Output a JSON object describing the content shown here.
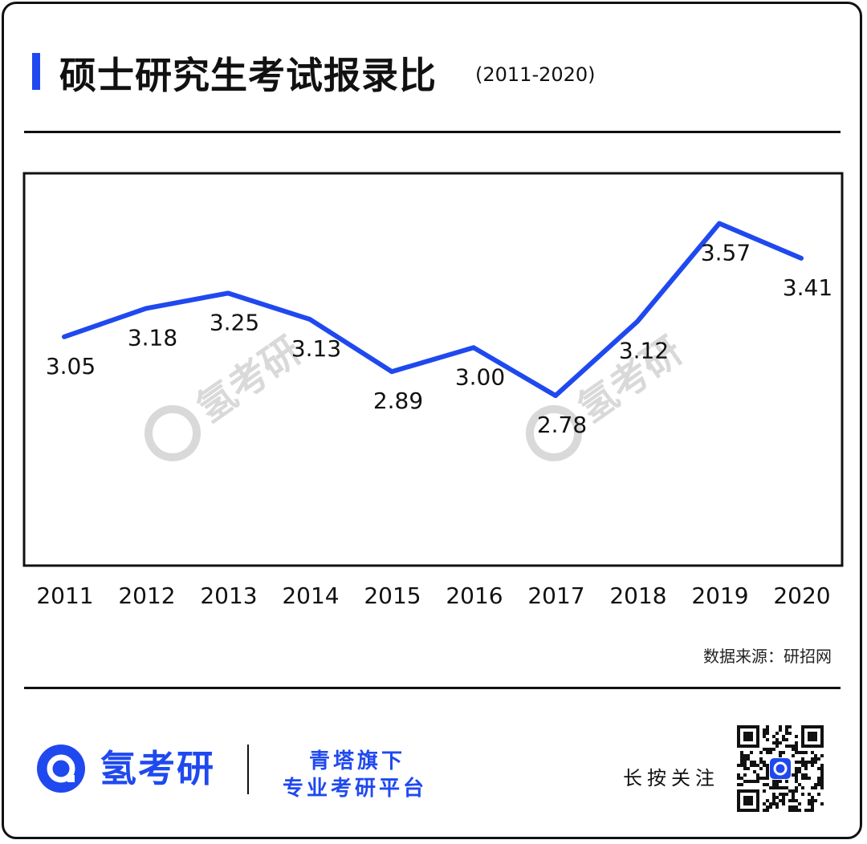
{
  "header": {
    "title": "硕士研究生考试报录比",
    "subtitle": "(2011-2020)"
  },
  "source": "数据来源：研招网",
  "footer": {
    "brand": "氢考研",
    "tagline_1": "青塔旗下",
    "tagline_2": "专业考研平台",
    "follow": "长按关注"
  },
  "watermark": "氢考研",
  "colors": {
    "accent": "#1f49ef",
    "line": "#1f49ef",
    "text": "#111111",
    "watermark": "#d9d9d9"
  },
  "chart_data": {
    "type": "line",
    "title": "硕士研究生考试报录比",
    "subtitle": "(2011-2020)",
    "categories": [
      "2011",
      "2012",
      "2013",
      "2014",
      "2015",
      "2016",
      "2017",
      "2018",
      "2019",
      "2020"
    ],
    "values": [
      3.05,
      3.18,
      3.25,
      3.13,
      2.89,
      3.0,
      2.78,
      3.12,
      3.57,
      3.41
    ],
    "value_labels": [
      "3.05",
      "3.18",
      "3.25",
      "3.13",
      "2.89",
      "3.00",
      "2.78",
      "3.12",
      "3.57",
      "3.41"
    ],
    "label_position": [
      "below",
      "below",
      "below",
      "below",
      "below",
      "below",
      "below",
      "below",
      "below",
      "below"
    ],
    "xlabel": "",
    "ylabel": "",
    "ylim": [
      2.0,
      3.8
    ],
    "grid": false,
    "legend": "none"
  }
}
